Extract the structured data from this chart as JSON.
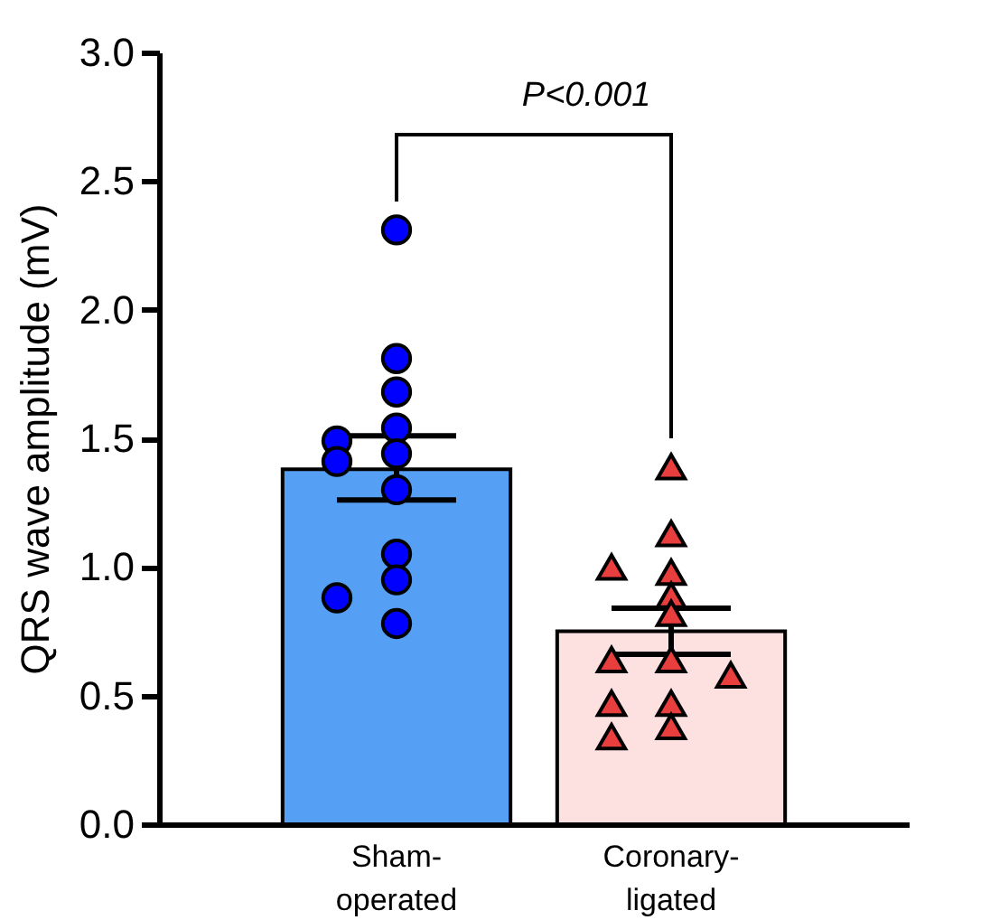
{
  "chart_data": {
    "type": "bar",
    "ylabel": "QRS wave amplitude (mV)",
    "categories": [
      "Sham-operated",
      "Coronary-ligated"
    ],
    "ylim": [
      0,
      3.0
    ],
    "yticks": [
      {
        "value": 0,
        "label": "0.0"
      },
      {
        "value": 0.5,
        "label": "0.5"
      },
      {
        "value": 1,
        "label": "1.0"
      },
      {
        "value": 1.5,
        "label": "1.5"
      },
      {
        "value": 2,
        "label": "2.0"
      },
      {
        "value": 2.5,
        "label": "2.5"
      },
      {
        "value": 3,
        "label": "3.0"
      }
    ],
    "grid": false,
    "legend": false,
    "annotations": [
      "P<0.001"
    ],
    "series": [
      {
        "values": [
          1.38,
          0.75
        ],
        "colors": [
          "#559ff5",
          "#fde0e0"
        ],
        "errors": [
          [
            1.26,
            1.51
          ],
          [
            0.66,
            0.84
          ]
        ]
      },
      {
        "type": "scatter",
        "marker": "circle",
        "color": "#0000ff",
        "x": [
          "Sham-operated",
          "Sham-operated",
          "Sham-operated",
          "Sham-operated",
          "Sham-operated",
          "Sham-operated",
          "Sham-operated",
          "Sham-operated",
          "Sham-operated",
          "Sham-operated",
          "Sham-operated",
          "Sham-operated"
        ],
        "values": [
          2.31,
          1.81,
          1.68,
          1.54,
          1.49,
          1.44,
          1.41,
          1.3,
          1.05,
          0.95,
          0.88,
          0.78
        ]
      },
      {
        "type": "scatter",
        "marker": "triangle",
        "color": "#e83e3e",
        "x": [
          "Coronary-ligated",
          "Coronary-ligated",
          "Coronary-ligated",
          "Coronary-ligated",
          "Coronary-ligated",
          "Coronary-ligated",
          "Coronary-ligated",
          "Coronary-ligated",
          "Coronary-ligated",
          "Coronary-ligated",
          "Coronary-ligated",
          "Coronary-ligated",
          "Coronary-ligated"
        ],
        "values": [
          1.39,
          1.13,
          0.98,
          1.0,
          0.89,
          0.82,
          0.64,
          0.64,
          0.58,
          0.47,
          0.47,
          0.38,
          0.34
        ]
      }
    ]
  }
}
